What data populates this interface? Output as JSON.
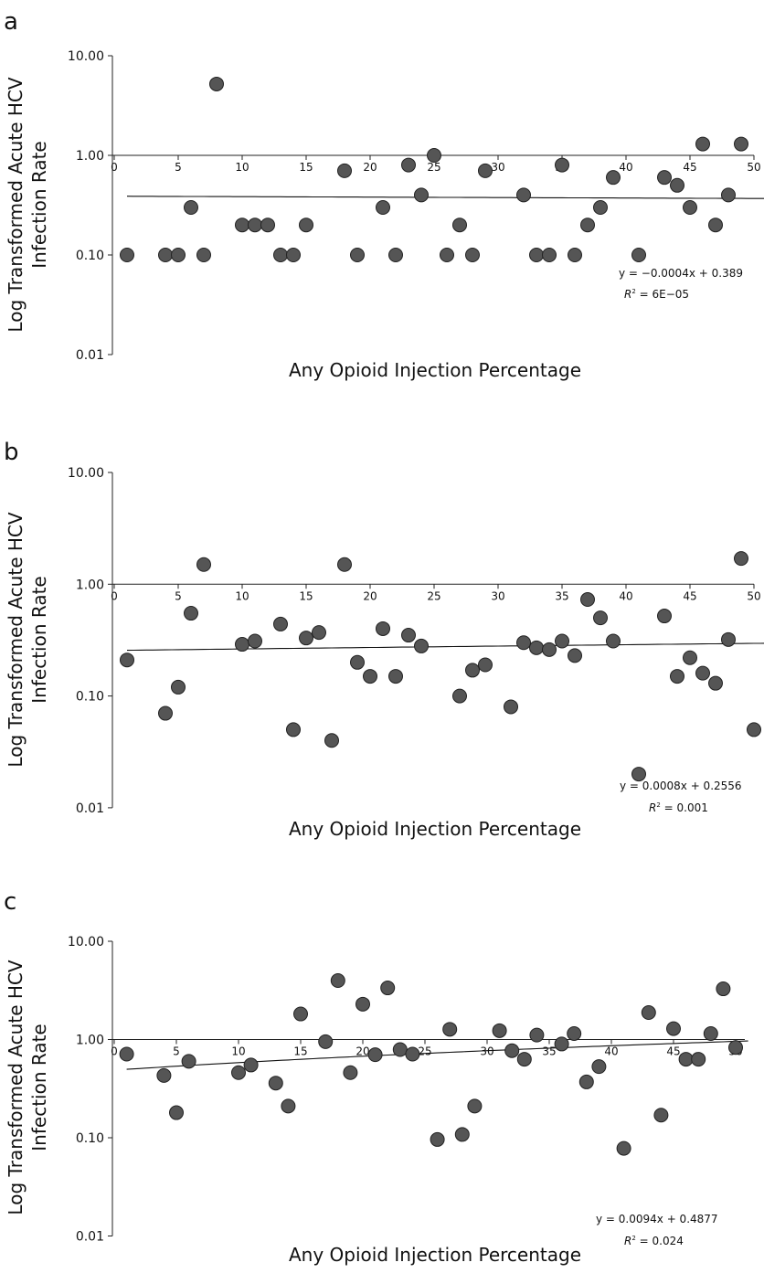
{
  "chart_data": [
    {
      "type": "scatter",
      "panel_label": "a",
      "xlabel": "Any Opioid Injection Percentage",
      "ylabel_line1": "Log Transformed Acute HCV",
      "ylabel_line2": "Infection Rate",
      "yscale": "log",
      "ylim": [
        0.01,
        10
      ],
      "xlim": [
        0,
        50
      ],
      "yticks": [
        "10.00",
        "1.00",
        "0.10",
        "0.01"
      ],
      "ytick_values": [
        10,
        1,
        0.1,
        0.01
      ],
      "xticks": [
        0,
        5,
        10,
        15,
        20,
        25,
        30,
        35,
        40,
        45,
        50
      ],
      "x": [
        1,
        4,
        5,
        6,
        7,
        8,
        10,
        11,
        12,
        13,
        14,
        15,
        18,
        19,
        21,
        22,
        23,
        24,
        25,
        26,
        27,
        28,
        29,
        32,
        33,
        34,
        35,
        36,
        37,
        38,
        39,
        41,
        43,
        44,
        45,
        46,
        47,
        48,
        49
      ],
      "y": [
        0.1,
        0.1,
        0.1,
        0.3,
        0.1,
        5.2,
        0.2,
        0.2,
        0.2,
        0.1,
        0.1,
        0.2,
        0.7,
        0.1,
        0.3,
        0.1,
        0.8,
        0.4,
        1.0,
        0.1,
        0.2,
        0.1,
        0.7,
        0.4,
        0.1,
        0.1,
        0.8,
        0.1,
        0.2,
        0.3,
        0.6,
        0.1,
        0.6,
        0.5,
        0.3,
        1.3,
        0.2,
        0.4,
        1.3
      ],
      "trendline": {
        "slope": -0.0004,
        "intercept": 0.389,
        "equation": "y = −0.0004x + 0.389",
        "r2_label": "R",
        "r2_value": " = 6E−05"
      }
    },
    {
      "type": "scatter",
      "panel_label": "b",
      "xlabel": "Any Opioid Injection Percentage",
      "ylabel_line1": "Log Transformed Acute HCV",
      "ylabel_line2": "Infection Rate",
      "yscale": "log",
      "ylim": [
        0.01,
        10
      ],
      "xlim": [
        0,
        50
      ],
      "yticks": [
        "10.00",
        "1.00",
        "0.10",
        "0.01"
      ],
      "ytick_values": [
        10,
        1,
        0.1,
        0.01
      ],
      "xticks": [
        0,
        5,
        10,
        15,
        20,
        25,
        30,
        35,
        40,
        45,
        50
      ],
      "x": [
        1,
        4,
        5,
        6,
        7,
        10,
        11,
        13,
        14,
        15,
        16,
        17,
        18,
        19,
        20,
        21,
        22,
        23,
        24,
        27,
        28,
        29,
        31,
        32,
        33,
        34,
        35,
        36,
        37,
        38,
        39,
        41,
        43,
        44,
        45,
        46,
        47,
        48,
        49,
        50
      ],
      "y": [
        0.21,
        0.07,
        0.12,
        0.55,
        1.5,
        0.29,
        0.31,
        0.44,
        0.05,
        0.33,
        0.37,
        0.04,
        1.5,
        0.2,
        0.15,
        0.4,
        0.15,
        0.35,
        0.28,
        0.1,
        0.17,
        0.19,
        0.08,
        0.3,
        0.27,
        0.26,
        0.31,
        0.23,
        0.73,
        0.5,
        0.31,
        0.02,
        0.52,
        0.15,
        0.22,
        0.16,
        0.13,
        0.32,
        1.7,
        0.05
      ],
      "trendline": {
        "slope": 0.0008,
        "intercept": 0.2556,
        "equation": "y = 0.0008x + 0.2556",
        "r2_label": "R",
        "r2_value": " = 0.001"
      }
    },
    {
      "type": "scatter",
      "panel_label": "c",
      "xlabel": "Any Opioid Injection Percentage",
      "ylabel_line1": "Log Transformed Acute HCV",
      "ylabel_line2": "Infection Rate",
      "yscale": "log",
      "ylim": [
        0.01,
        10
      ],
      "xlim": [
        0,
        50
      ],
      "yticks": [
        "10.00",
        "1.00",
        "0.10",
        "0.01"
      ],
      "ytick_values": [
        10,
        1,
        0.1,
        0.01
      ],
      "xticks": [
        0,
        5,
        10,
        15,
        20,
        25,
        30,
        35,
        40,
        45,
        50
      ],
      "x": [
        1,
        4,
        5,
        6,
        10,
        11,
        13,
        14,
        15,
        17,
        18,
        19,
        20,
        21,
        22,
        23,
        24,
        26,
        27,
        28,
        29,
        31,
        32,
        33,
        34,
        36,
        37,
        38,
        39,
        41,
        43,
        44,
        45,
        46,
        47,
        48,
        49,
        50
      ],
      "y": [
        0.71,
        0.43,
        0.18,
        0.6,
        0.46,
        0.55,
        0.36,
        0.21,
        1.82,
        0.95,
        3.98,
        0.46,
        2.29,
        0.7,
        3.35,
        0.79,
        0.71,
        0.096,
        1.27,
        0.108,
        0.21,
        1.23,
        0.77,
        0.63,
        1.11,
        0.9,
        1.15,
        0.37,
        0.53,
        0.078,
        1.88,
        0.17,
        1.29,
        0.63,
        0.63,
        1.15,
        3.28,
        0.83
      ],
      "trendline": {
        "slope": 0.0094,
        "intercept": 0.4877,
        "equation": "y = 0.0094x + 0.4877",
        "r2_label": "R",
        "r2_value": " = 0.024"
      }
    }
  ],
  "colors": {
    "marker": "#555555",
    "marker_stroke": "#222222",
    "axis": "#222222"
  }
}
